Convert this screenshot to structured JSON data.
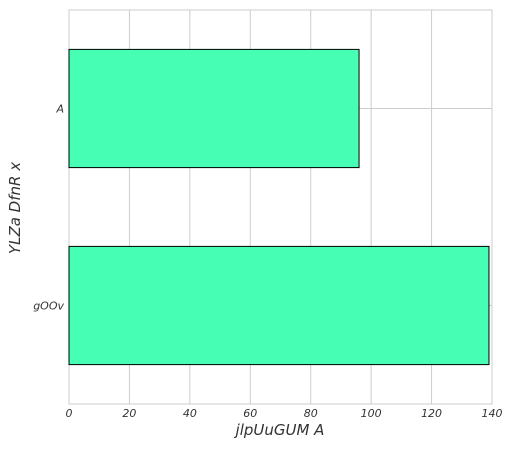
{
  "chart_data": {
    "type": "bar",
    "orientation": "horizontal",
    "categories": [
      "A",
      "gOOv"
    ],
    "values": [
      96,
      139
    ],
    "xlabel": "jlpUuGUM A",
    "ylabel": "YLZa DfnR x",
    "xlim": [
      0,
      140
    ],
    "xticks": [
      "0",
      "20",
      "40",
      "60",
      "80",
      "100",
      "120",
      "140"
    ],
    "grid": true,
    "bar_color": "#47ffb4",
    "edge_color": "#000000",
    "grid_color": "#cccccc"
  }
}
